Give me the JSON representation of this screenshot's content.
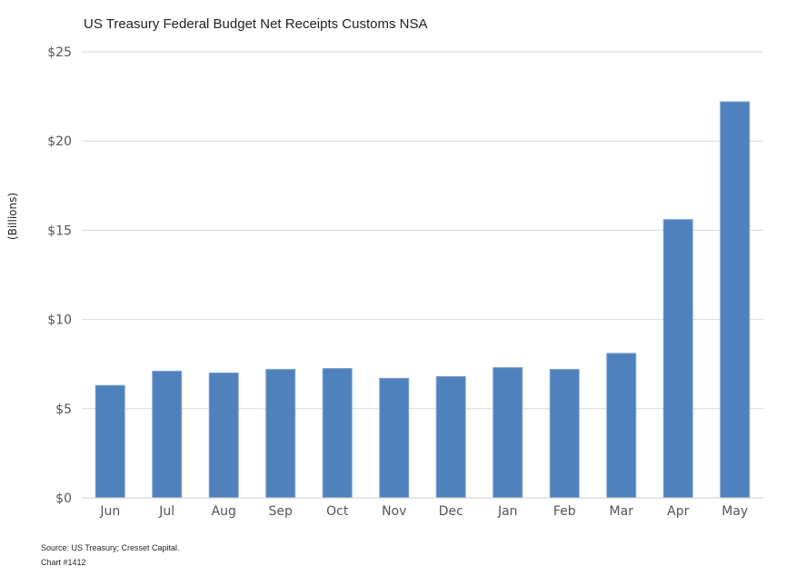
{
  "chart_data": {
    "type": "bar",
    "title": "US Treasury Federal Budget Net Receipts Customs NSA",
    "xlabel": "",
    "ylabel": "(Billions)",
    "categories": [
      "Jun",
      "Jul",
      "Aug",
      "Sep",
      "Oct",
      "Nov",
      "Dec",
      "Jan",
      "Feb",
      "Mar",
      "Apr",
      "May"
    ],
    "values": [
      6.3,
      7.1,
      7.0,
      7.2,
      7.25,
      6.7,
      6.8,
      7.3,
      7.2,
      8.1,
      15.6,
      22.2
    ],
    "ylim": [
      0,
      25
    ],
    "yticks": [
      0,
      5,
      10,
      15,
      20,
      25
    ],
    "ytick_labels": [
      "$0",
      "$5",
      "$10",
      "$15",
      "$20",
      "$25"
    ],
    "grid": true,
    "legend": "none",
    "bar_color": "#4f81bd",
    "bar_edge_color": "#7fa3d3"
  },
  "footer": {
    "source": "Source: US Treasury; Cresset Capital.",
    "chart_id": "Chart #1412"
  }
}
